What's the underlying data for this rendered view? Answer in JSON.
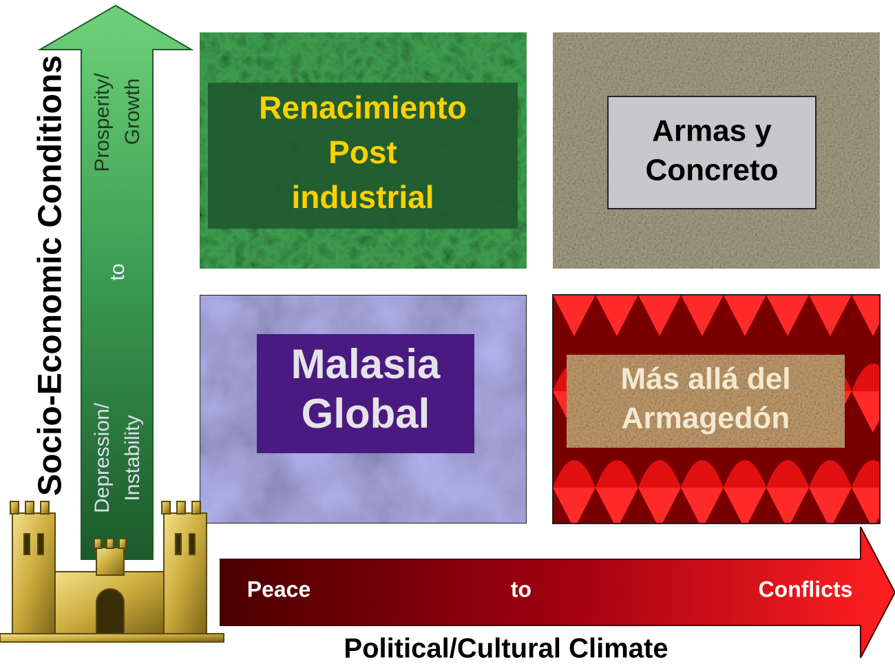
{
  "y_axis": {
    "title": "Socio-Economic Conditions",
    "high": [
      "Prosperity/",
      "Growth"
    ],
    "middle": "to",
    "low": [
      "Depression/",
      "Instability"
    ]
  },
  "x_axis": {
    "title": "Political/Cultural Climate",
    "left": "Peace",
    "middle": "to",
    "right": "Conflicts"
  },
  "quadrants": [
    {
      "lines": [
        "Renacimiento",
        "Post",
        "industrial"
      ]
    },
    {
      "lines": [
        "Armas y",
        "Concreto"
      ]
    },
    {
      "lines": [
        "Malasia",
        "Global"
      ]
    },
    {
      "lines": [
        "Más allá del",
        "Armagedón"
      ]
    }
  ]
}
